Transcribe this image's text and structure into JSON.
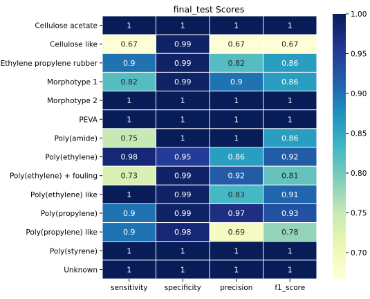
{
  "chart_data": {
    "type": "heatmap",
    "title": "final_test Scores",
    "xlabel": "",
    "ylabel": "",
    "columns": [
      "sensitivity",
      "specificity",
      "precision",
      "f1_score"
    ],
    "rows": [
      "Cellulose acetate",
      "Cellulose like",
      "Ethylene propylene rubber",
      "Morphotype 1",
      "Morphotype 2",
      "PEVA",
      "Poly(amide)",
      "Poly(ethylene)",
      "Poly(ethylene) + fouling",
      "Poly(ethylene) like",
      "Poly(propylene)",
      "Poly(propylene) like",
      "Poly(styrene)",
      "Unknown"
    ],
    "values": [
      [
        1,
        1,
        1,
        1
      ],
      [
        0.67,
        0.99,
        0.67,
        0.67
      ],
      [
        0.9,
        0.99,
        0.82,
        0.86
      ],
      [
        0.82,
        0.99,
        0.9,
        0.86
      ],
      [
        1,
        1,
        1,
        1
      ],
      [
        1,
        1,
        1,
        1
      ],
      [
        0.75,
        1,
        1,
        0.86
      ],
      [
        0.98,
        0.95,
        0.86,
        0.92
      ],
      [
        0.73,
        0.99,
        0.92,
        0.81
      ],
      [
        1,
        0.99,
        0.83,
        0.91
      ],
      [
        0.9,
        0.99,
        0.97,
        0.93
      ],
      [
        0.9,
        0.98,
        0.69,
        0.78
      ],
      [
        1,
        1,
        1,
        1
      ],
      [
        1,
        1,
        1,
        1
      ]
    ],
    "colormap": "YlGnBu",
    "vmin": 0.667,
    "vmax": 1.0,
    "colorbar": {
      "ticks": [
        0.7,
        0.75,
        0.8,
        0.85,
        0.9,
        0.95,
        1.0
      ],
      "tick_labels": [
        "0.70",
        "0.75",
        "0.80",
        "0.85",
        "0.90",
        "0.95",
        "1.00"
      ]
    },
    "cell_border_color": "#ffffff",
    "annotations": true
  }
}
